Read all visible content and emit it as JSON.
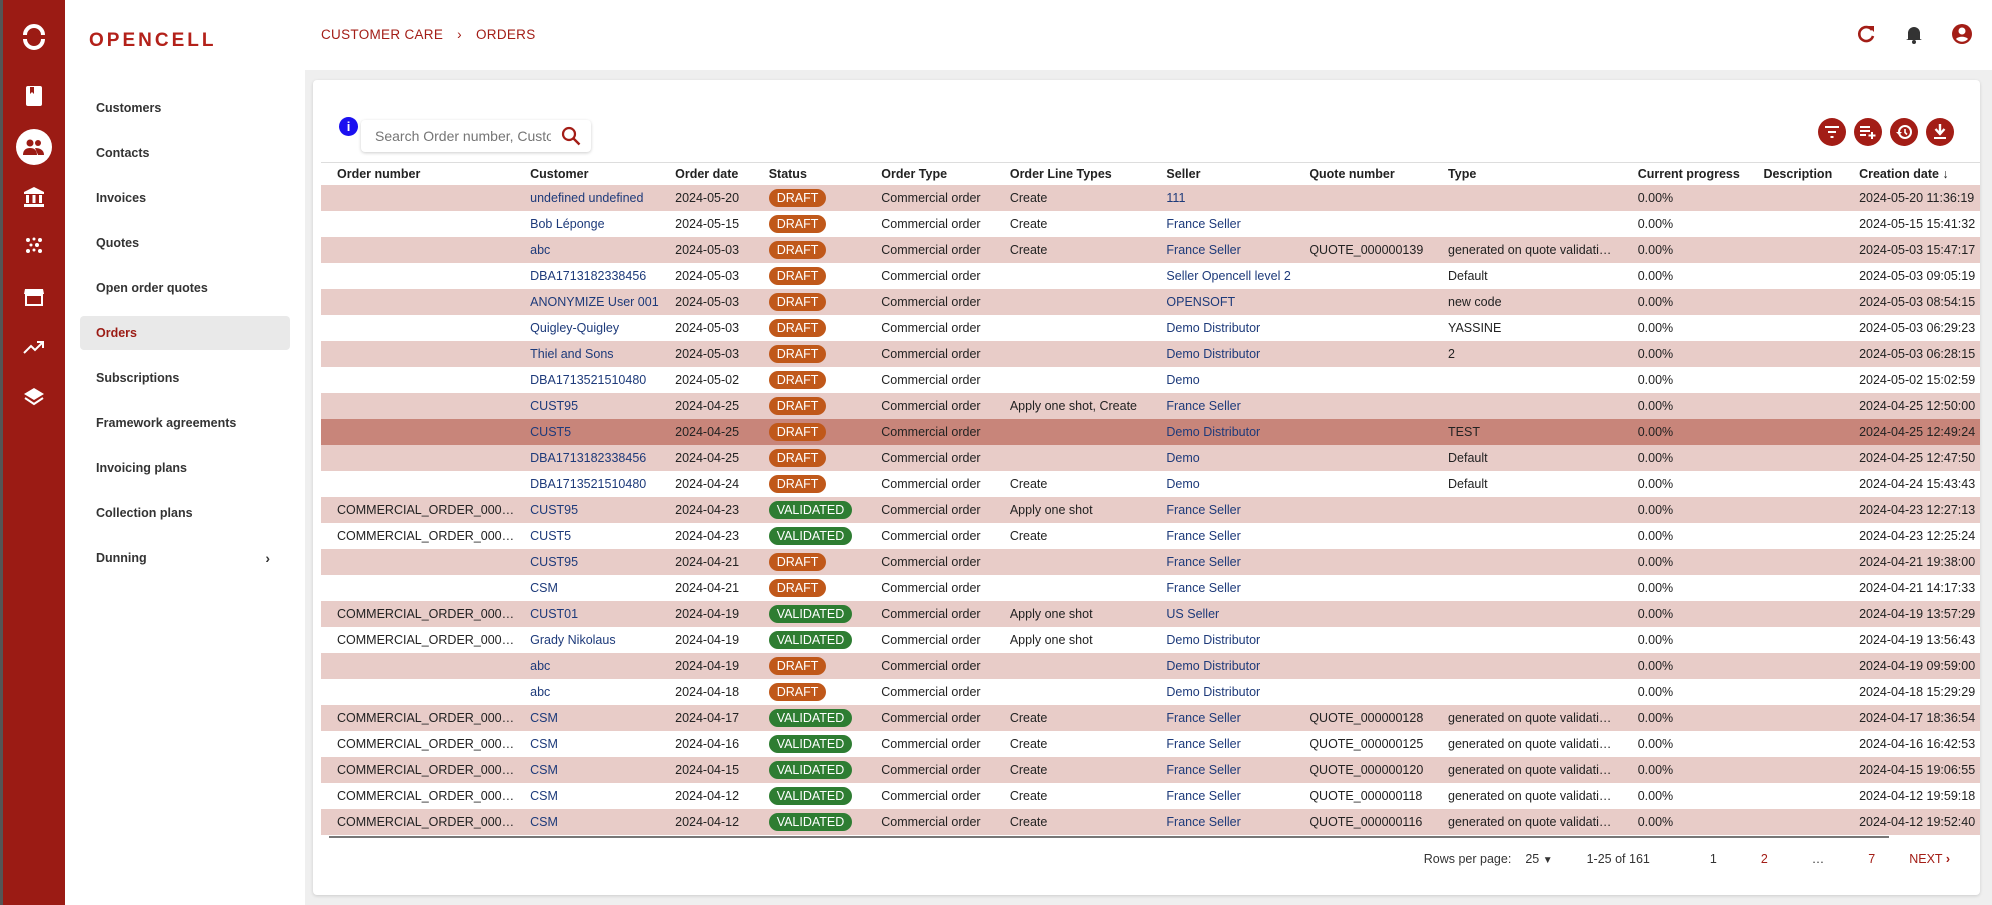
{
  "app": {
    "logo": "OPENCELL",
    "accent": "#9b1b14"
  },
  "rail": {
    "icons": [
      "opencell-logo-icon",
      "book-icon",
      "customers-icon",
      "bank-icon",
      "dots-icon",
      "store-icon",
      "trending-up-icon",
      "layers-icon"
    ],
    "active": "customers-icon"
  },
  "nav": {
    "items": [
      {
        "label": "Customers"
      },
      {
        "label": "Contacts"
      },
      {
        "label": "Invoices"
      },
      {
        "label": "Quotes"
      },
      {
        "label": "Open order quotes"
      },
      {
        "label": "Orders",
        "active": true
      },
      {
        "label": "Subscriptions"
      },
      {
        "label": "Framework agreements"
      },
      {
        "label": "Invoicing plans"
      },
      {
        "label": "Collection plans"
      },
      {
        "label": "Dunning",
        "chevron": "›"
      }
    ]
  },
  "breadcrumb": {
    "parent": "CUSTOMER CARE",
    "separator": "›",
    "current": "ORDERS"
  },
  "header_icons": [
    "refresh-icon",
    "bell-icon",
    "account-icon"
  ],
  "search": {
    "placeholder": "Search Order number, Customer",
    "value": "",
    "info": "i"
  },
  "toolbar": {
    "icons": [
      "filter-icon",
      "add-column-icon",
      "history-icon",
      "download-icon"
    ]
  },
  "table": {
    "columns": [
      "Order number",
      "Customer",
      "Order date",
      "Status",
      "Order Type",
      "Order Line Types",
      "Seller",
      "Quote number",
      "Type",
      "Current progress",
      "Description",
      "Creation date ↓"
    ],
    "status_colors": {
      "DRAFT": "#c0581a",
      "VALIDATED": "#2e7d32"
    },
    "rows": [
      [
        "",
        "undefined undefined",
        "2024-05-20",
        "DRAFT",
        "Commercial order",
        "Create",
        "111",
        "",
        "",
        "0.00%",
        "",
        "2024-05-20 11:36:19"
      ],
      [
        "",
        "Bob Léponge",
        "2024-05-15",
        "DRAFT",
        "Commercial order",
        "Create",
        "France Seller",
        "",
        "",
        "0.00%",
        "",
        "2024-05-15 15:41:32"
      ],
      [
        "",
        "abc",
        "2024-05-03",
        "DRAFT",
        "Commercial order",
        "Create",
        "France Seller",
        "QUOTE_000000139",
        "generated on quote validati…",
        "0.00%",
        "",
        "2024-05-03 15:47:17"
      ],
      [
        "",
        "DBA1713182338456",
        "2024-05-03",
        "DRAFT",
        "Commercial order",
        "",
        "Seller Opencell level 2",
        "",
        "Default",
        "0.00%",
        "",
        "2024-05-03 09:05:19"
      ],
      [
        "",
        "ANONYMIZE User 001",
        "2024-05-03",
        "DRAFT",
        "Commercial order",
        "",
        "OPENSOFT",
        "",
        "new code",
        "0.00%",
        "",
        "2024-05-03 08:54:15"
      ],
      [
        "",
        "Quigley-Quigley",
        "2024-05-03",
        "DRAFT",
        "Commercial order",
        "",
        "Demo Distributor",
        "",
        "YASSINE",
        "0.00%",
        "",
        "2024-05-03 06:29:23"
      ],
      [
        "",
        "Thiel and Sons",
        "2024-05-03",
        "DRAFT",
        "Commercial order",
        "",
        "Demo Distributor",
        "",
        "2",
        "0.00%",
        "",
        "2024-05-03 06:28:15"
      ],
      [
        "",
        "DBA1713521510480",
        "2024-05-02",
        "DRAFT",
        "Commercial order",
        "",
        "Demo",
        "",
        "",
        "0.00%",
        "",
        "2024-05-02 15:02:59"
      ],
      [
        "",
        "CUST95",
        "2024-04-25",
        "DRAFT",
        "Commercial order",
        "Apply one shot, Create",
        "France Seller",
        "",
        "",
        "0.00%",
        "",
        "2024-04-25 12:50:00"
      ],
      [
        "",
        "CUST5",
        "2024-04-25",
        "DRAFT",
        "Commercial order",
        "",
        "Demo Distributor",
        "",
        "TEST",
        "0.00%",
        "",
        "2024-04-25 12:49:24"
      ],
      [
        "",
        "DBA1713182338456",
        "2024-04-25",
        "DRAFT",
        "Commercial order",
        "",
        "Demo",
        "",
        "Default",
        "0.00%",
        "",
        "2024-04-25 12:47:50"
      ],
      [
        "",
        "DBA1713521510480",
        "2024-04-24",
        "DRAFT",
        "Commercial order",
        "Create",
        "Demo",
        "",
        "Default",
        "0.00%",
        "",
        "2024-04-24 15:43:43"
      ],
      [
        "COMMERCIAL_ORDER_000…",
        "CUST95",
        "2024-04-23",
        "VALIDATED",
        "Commercial order",
        "Apply one shot",
        "France Seller",
        "",
        "",
        "0.00%",
        "",
        "2024-04-23 12:27:13"
      ],
      [
        "COMMERCIAL_ORDER_000…",
        "CUST5",
        "2024-04-23",
        "VALIDATED",
        "Commercial order",
        "Create",
        "France Seller",
        "",
        "",
        "0.00%",
        "",
        "2024-04-23 12:25:24"
      ],
      [
        "",
        "CUST95",
        "2024-04-21",
        "DRAFT",
        "Commercial order",
        "",
        "France Seller",
        "",
        "",
        "0.00%",
        "",
        "2024-04-21 19:38:00"
      ],
      [
        "",
        "CSM",
        "2024-04-21",
        "DRAFT",
        "Commercial order",
        "",
        "France Seller",
        "",
        "",
        "0.00%",
        "",
        "2024-04-21 14:17:33"
      ],
      [
        "COMMERCIAL_ORDER_000…",
        "CUST01",
        "2024-04-19",
        "VALIDATED",
        "Commercial order",
        "Apply one shot",
        "US Seller",
        "",
        "",
        "0.00%",
        "",
        "2024-04-19 13:57:29"
      ],
      [
        "COMMERCIAL_ORDER_000…",
        "Grady Nikolaus",
        "2024-04-19",
        "VALIDATED",
        "Commercial order",
        "Apply one shot",
        "Demo Distributor",
        "",
        "",
        "0.00%",
        "",
        "2024-04-19 13:56:43"
      ],
      [
        "",
        "abc",
        "2024-04-19",
        "DRAFT",
        "Commercial order",
        "",
        "Demo Distributor",
        "",
        "",
        "0.00%",
        "",
        "2024-04-19 09:59:00"
      ],
      [
        "",
        "abc",
        "2024-04-18",
        "DRAFT",
        "Commercial order",
        "",
        "Demo Distributor",
        "",
        "",
        "0.00%",
        "",
        "2024-04-18 15:29:29"
      ],
      [
        "COMMERCIAL_ORDER_000…",
        "CSM",
        "2024-04-17",
        "VALIDATED",
        "Commercial order",
        "Create",
        "France Seller",
        "QUOTE_000000128",
        "generated on quote validati…",
        "0.00%",
        "",
        "2024-04-17 18:36:54"
      ],
      [
        "COMMERCIAL_ORDER_000…",
        "CSM",
        "2024-04-16",
        "VALIDATED",
        "Commercial order",
        "Create",
        "France Seller",
        "QUOTE_000000125",
        "generated on quote validati…",
        "0.00%",
        "",
        "2024-04-16 16:42:53"
      ],
      [
        "COMMERCIAL_ORDER_000…",
        "CSM",
        "2024-04-15",
        "VALIDATED",
        "Commercial order",
        "Create",
        "France Seller",
        "QUOTE_000000120",
        "generated on quote validati…",
        "0.00%",
        "",
        "2024-04-15 19:06:55"
      ],
      [
        "COMMERCIAL_ORDER_000…",
        "CSM",
        "2024-04-12",
        "VALIDATED",
        "Commercial order",
        "Create",
        "France Seller",
        "QUOTE_000000118",
        "generated on quote validati…",
        "0.00%",
        "",
        "2024-04-12 19:59:18"
      ],
      [
        "COMMERCIAL_ORDER_000…",
        "CSM",
        "2024-04-12",
        "VALIDATED",
        "Commercial order",
        "Create",
        "France Seller",
        "QUOTE_000000116",
        "generated on quote validati…",
        "0.00%",
        "",
        "2024-04-12 19:52:40"
      ]
    ],
    "highlighted_row": 10
  },
  "pagination": {
    "rows_per_page_label": "Rows per page:",
    "rows_per_page": "25",
    "range": "1-25 of 161",
    "pages": [
      "1",
      "2",
      "…",
      "7"
    ],
    "current_page": "1",
    "next": "NEXT"
  }
}
